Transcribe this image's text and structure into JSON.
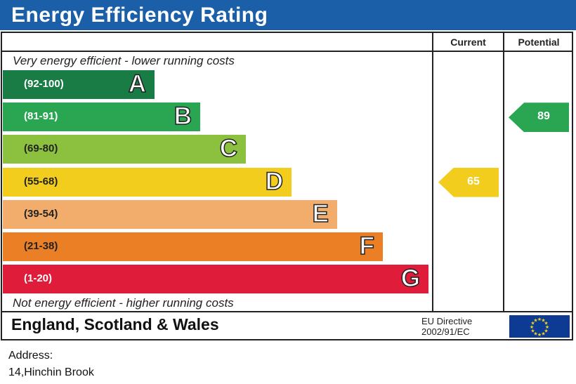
{
  "header": {
    "title": "Energy Efficiency Rating"
  },
  "columns": {
    "current": "Current",
    "potential": "Potential"
  },
  "captions": {
    "top": "Very energy efficient - lower running costs",
    "bottom": "Not energy efficient - higher running costs"
  },
  "chart_data": {
    "type": "bar",
    "title": "Energy Efficiency Rating",
    "bands": [
      {
        "letter": "A",
        "range": "(92-100)",
        "color": "#1a7c45"
      },
      {
        "letter": "B",
        "range": "(81-91)",
        "color": "#2aa552"
      },
      {
        "letter": "C",
        "range": "(69-80)",
        "color": "#8cc13f"
      },
      {
        "letter": "D",
        "range": "(55-68)",
        "color": "#f3cd1d"
      },
      {
        "letter": "E",
        "range": "(39-54)",
        "color": "#f2ac6c"
      },
      {
        "letter": "F",
        "range": "(21-38)",
        "color": "#ea7f26"
      },
      {
        "letter": "G",
        "range": "(1-20)",
        "color": "#df1d3b"
      }
    ],
    "current": {
      "value": 65,
      "band": "D",
      "color": "#f3cd1d"
    },
    "potential": {
      "value": 89,
      "band": "B",
      "color": "#2aa552"
    }
  },
  "footer": {
    "region": "England, Scotland & Wales",
    "directive_line1": "EU Directive",
    "directive_line2": "2002/91/EC",
    "flag_icon": "eu-flag-icon"
  },
  "address": {
    "label": "Address:",
    "value": "14,Hinchin Brook"
  }
}
